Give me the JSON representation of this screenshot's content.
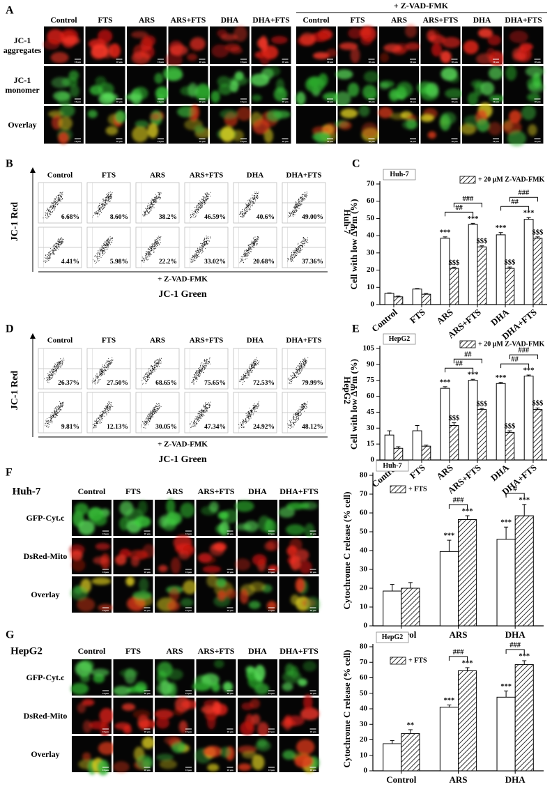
{
  "panel_a": {
    "label": "A",
    "group_label": "+ Z-VAD-FMK",
    "columns": [
      "Control",
      "FTS",
      "ARS",
      "ARS+FTS",
      "DHA",
      "DHA+FTS"
    ],
    "rows": [
      "JC-1 aggregates",
      "JC-1 monomer",
      "Overlay"
    ],
    "scale_bar": "10 μm"
  },
  "panel_b": {
    "label": "B",
    "columns": [
      "Control",
      "FTS",
      "ARS",
      "ARS+FTS",
      "DHA",
      "DHA+FTS"
    ],
    "rows": [
      [
        "6.68%",
        "8.60%",
        "38.2%",
        "46.59%",
        "40.6%",
        "49.00%"
      ],
      [
        "4.41%",
        "5.98%",
        "22.2%",
        "33.02%",
        "20.68%",
        "37.36%"
      ]
    ],
    "y_label": "JC-1 Red",
    "x_label": "JC-1 Green",
    "treatment_label": "+ Z-VAD-FMK",
    "cell_line": "Huh-7"
  },
  "panel_d": {
    "label": "D",
    "columns": [
      "Control",
      "FTS",
      "ARS",
      "ARS+FTS",
      "DHA",
      "DHA+FTS"
    ],
    "rows": [
      [
        "26.37%",
        "27.50%",
        "68.65%",
        "75.65%",
        "72.53%",
        "79.99%"
      ],
      [
        "9.81%",
        "12.13%",
        "30.05%",
        "47.34%",
        "24.92%",
        "48.12%"
      ]
    ],
    "y_label": "JC-1 Red",
    "x_label": "JC-1 Green",
    "treatment_label": "+ Z-VAD-FMK",
    "cell_line": "HepG2"
  },
  "panel_f": {
    "label": "F",
    "cell_line": "Huh-7",
    "columns": [
      "Control",
      "FTS",
      "ARS",
      "ARS+FTS",
      "DHA",
      "DHA+FTS"
    ],
    "rows": [
      "GFP-Cyt.c",
      "DsRed-Mito",
      "Overlay"
    ],
    "scale_bar": "10 μm"
  },
  "panel_g": {
    "label": "G",
    "cell_line": "HepG2",
    "columns": [
      "Control",
      "FTS",
      "ARS",
      "ARS+FTS",
      "DHA",
      "DHA+FTS"
    ],
    "rows": [
      "GFP-Cyt.c",
      "DsRed-Mito",
      "Overlay"
    ],
    "scale_bar": "10 μm"
  },
  "chart_data": [
    {
      "type": "bar",
      "label": "C",
      "box_label": "Huh-7",
      "ylabel": "Cell with low ΔΨm (%)",
      "categories": [
        "Control",
        "FTS",
        "ARS",
        "ARS+FTS",
        "DHA",
        "DHA+FTS"
      ],
      "rotate_labels": true,
      "ylim": [
        0,
        70
      ],
      "yticks": [
        0,
        10,
        20,
        30,
        40,
        50,
        60,
        70
      ],
      "legend": "top-right",
      "series": [
        {
          "color": "#ffffff",
          "values": [
            6.5,
            9,
            38.5,
            46.5,
            40.5,
            49.5
          ],
          "errors": [
            0.3,
            0.3,
            0.8,
            0.7,
            1.3,
            1.0
          ],
          "annotations": [
            null,
            null,
            "***",
            "***",
            "***",
            "***"
          ]
        },
        {
          "name": "+ 20 μM Z-VAD-FMK",
          "color": "#ffffff",
          "hatch": true,
          "values": [
            4.5,
            6,
            21,
            33.5,
            21,
            38.5
          ],
          "errors": [
            0.4,
            0.4,
            0.7,
            0.6,
            0.8,
            0.8
          ],
          "annotations": [
            null,
            null,
            "$$$",
            "$$$",
            "$$$",
            "$$$"
          ]
        }
      ],
      "brackets": [
        {
          "text": "##",
          "from": [
            0,
            2
          ],
          "to": [
            0,
            3
          ]
        },
        {
          "text": "###",
          "from": [
            1,
            2
          ],
          "to": [
            1,
            3
          ]
        },
        {
          "text": "##",
          "from": [
            0,
            4
          ],
          "to": [
            0,
            5
          ]
        },
        {
          "text": "###",
          "from": [
            1,
            4
          ],
          "to": [
            1,
            5
          ]
        }
      ]
    },
    {
      "type": "bar",
      "label": "E",
      "box_label": "HepG2",
      "ylabel": "Cell with low ΔΨm (%)",
      "categories": [
        "Control",
        "FTS",
        "ARS",
        "ARS+FTS",
        "DHA",
        "DHA+FTS"
      ],
      "rotate_labels": true,
      "ylim": [
        0,
        105
      ],
      "yticks": [
        0,
        15,
        30,
        45,
        60,
        75,
        90,
        105
      ],
      "legend": "top-right",
      "series": [
        {
          "color": "#ffffff",
          "values": [
            23.5,
            27.5,
            67.5,
            75,
            72,
            79
          ],
          "errors": [
            4,
            5,
            1.5,
            1,
            1,
            1
          ],
          "annotations": [
            null,
            null,
            "***",
            "***",
            "***",
            "***"
          ]
        },
        {
          "name": "+ 20 μM Z-VAD-FMK",
          "color": "#ffffff",
          "hatch": true,
          "values": [
            11,
            13,
            32.5,
            47.5,
            26,
            47.5
          ],
          "errors": [
            1.5,
            1,
            2.5,
            1,
            1.5,
            1.5
          ],
          "annotations": [
            null,
            null,
            "$$$",
            "$$$",
            "$$$",
            "$$$"
          ]
        }
      ],
      "brackets": [
        {
          "text": "##",
          "from": [
            0,
            2
          ],
          "to": [
            0,
            3
          ]
        },
        {
          "text": "##",
          "from": [
            1,
            2
          ],
          "to": [
            1,
            3
          ]
        },
        {
          "text": "##",
          "from": [
            0,
            4
          ],
          "to": [
            0,
            5
          ]
        },
        {
          "text": "###",
          "from": [
            1,
            4
          ],
          "to": [
            1,
            5
          ]
        }
      ]
    },
    {
      "type": "bar",
      "box_label": "Huh-7",
      "ylabel": "Cytochrome C release (% cell)",
      "categories": [
        "Control",
        "ARS",
        "DHA"
      ],
      "rotate_labels": false,
      "ylim": [
        0,
        80
      ],
      "yticks": [
        0,
        10,
        20,
        30,
        40,
        50,
        60,
        70,
        80
      ],
      "legend": "top-left",
      "series": [
        {
          "color": "#ffffff",
          "values": [
            18.5,
            39.5,
            46
          ],
          "errors": [
            3.5,
            6,
            6.5
          ],
          "annotations": [
            null,
            "***",
            "***"
          ]
        },
        {
          "name": "+ FTS",
          "color": "#ffffff",
          "hatch": true,
          "values": [
            20,
            56.5,
            58.5
          ],
          "errors": [
            3,
            2,
            6
          ],
          "annotations": [
            null,
            "***",
            "***"
          ]
        }
      ],
      "brackets": [
        {
          "text": "###",
          "from": [
            0,
            1
          ],
          "to": [
            1,
            1
          ]
        },
        {
          "text": "#",
          "from": [
            0,
            2
          ],
          "to": [
            1,
            2
          ]
        }
      ]
    },
    {
      "type": "bar",
      "box_label": "HepG2",
      "ylabel": "Cytochrome C release (% cell)",
      "categories": [
        "Control",
        "ARS",
        "DHA"
      ],
      "rotate_labels": false,
      "ylim": [
        0,
        80
      ],
      "yticks": [
        0,
        10,
        20,
        30,
        40,
        50,
        60,
        70,
        80
      ],
      "legend": "top-left",
      "series": [
        {
          "color": "#ffffff",
          "values": [
            17.5,
            41,
            47.5
          ],
          "errors": [
            2,
            1.5,
            4
          ],
          "annotations": [
            null,
            "***",
            "***"
          ]
        },
        {
          "name": "+ FTS",
          "color": "#ffffff",
          "hatch": true,
          "values": [
            24,
            64.5,
            68.5
          ],
          "errors": [
            2.5,
            2,
            2.5
          ],
          "annotations": [
            "**",
            "***",
            "***"
          ]
        }
      ],
      "brackets": [
        {
          "text": "###",
          "from": [
            0,
            1
          ],
          "to": [
            1,
            1
          ]
        },
        {
          "text": "###",
          "from": [
            0,
            2
          ],
          "to": [
            1,
            2
          ]
        }
      ]
    }
  ]
}
